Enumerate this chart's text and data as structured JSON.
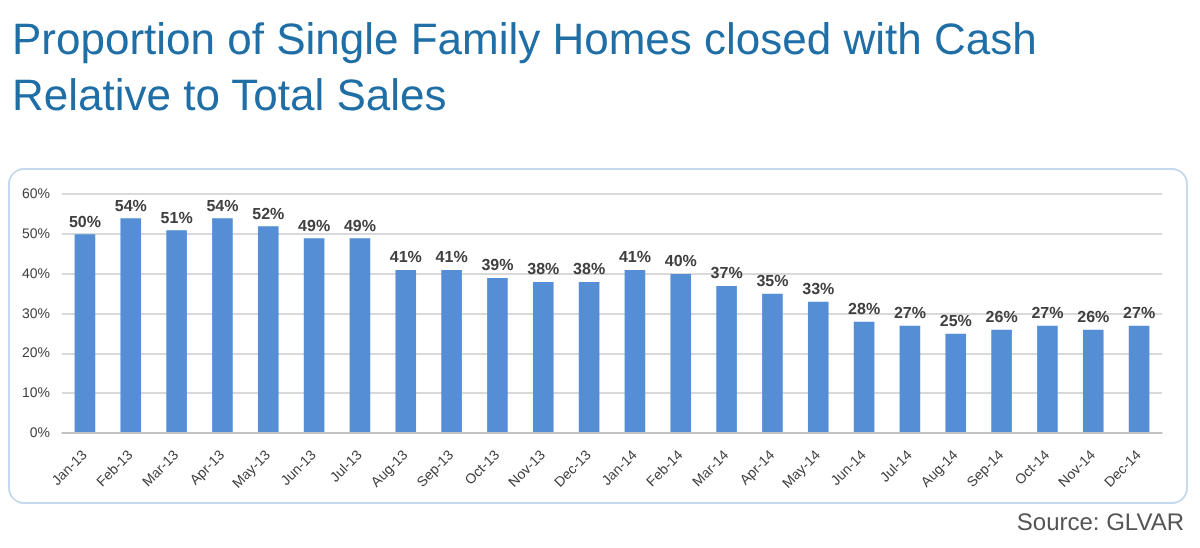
{
  "chart_data": {
    "type": "bar",
    "title": "Proportion of Single Family Homes closed with Cash Relative to Total Sales",
    "categories": [
      "Jan-13",
      "Feb-13",
      "Mar-13",
      "Apr-13",
      "May-13",
      "Jun-13",
      "Jul-13",
      "Aug-13",
      "Sep-13",
      "Oct-13",
      "Nov-13",
      "Dec-13",
      "Jan-14",
      "Feb-14",
      "Mar-14",
      "Apr-14",
      "May-14",
      "Jun-14",
      "Jul-14",
      "Aug-14",
      "Sep-14",
      "Oct-14",
      "Nov-14",
      "Dec-14"
    ],
    "values": [
      50,
      54,
      51,
      54,
      52,
      49,
      49,
      41,
      41,
      39,
      38,
      38,
      41,
      40,
      37,
      35,
      33,
      28,
      27,
      25,
      26,
      27,
      26,
      27
    ],
    "value_labels": [
      "50%",
      "54%",
      "51%",
      "54%",
      "52%",
      "49%",
      "49%",
      "41%",
      "41%",
      "39%",
      "38%",
      "38%",
      "41%",
      "40%",
      "37%",
      "35%",
      "33%",
      "28%",
      "27%",
      "25%",
      "26%",
      "27%",
      "26%",
      "27%"
    ],
    "color": "#558ed5",
    "ylim": [
      0,
      60
    ],
    "yticks": [
      {
        "value": 0,
        "label": "0%"
      },
      {
        "value": 10,
        "label": "10%"
      },
      {
        "value": 20,
        "label": "20%"
      },
      {
        "value": 30,
        "label": "30%"
      },
      {
        "value": 40,
        "label": "40%"
      },
      {
        "value": 50,
        "label": "50%"
      },
      {
        "value": 60,
        "label": "60%"
      }
    ],
    "grid": "y",
    "annotations": [
      "Source: GLVAR"
    ]
  }
}
